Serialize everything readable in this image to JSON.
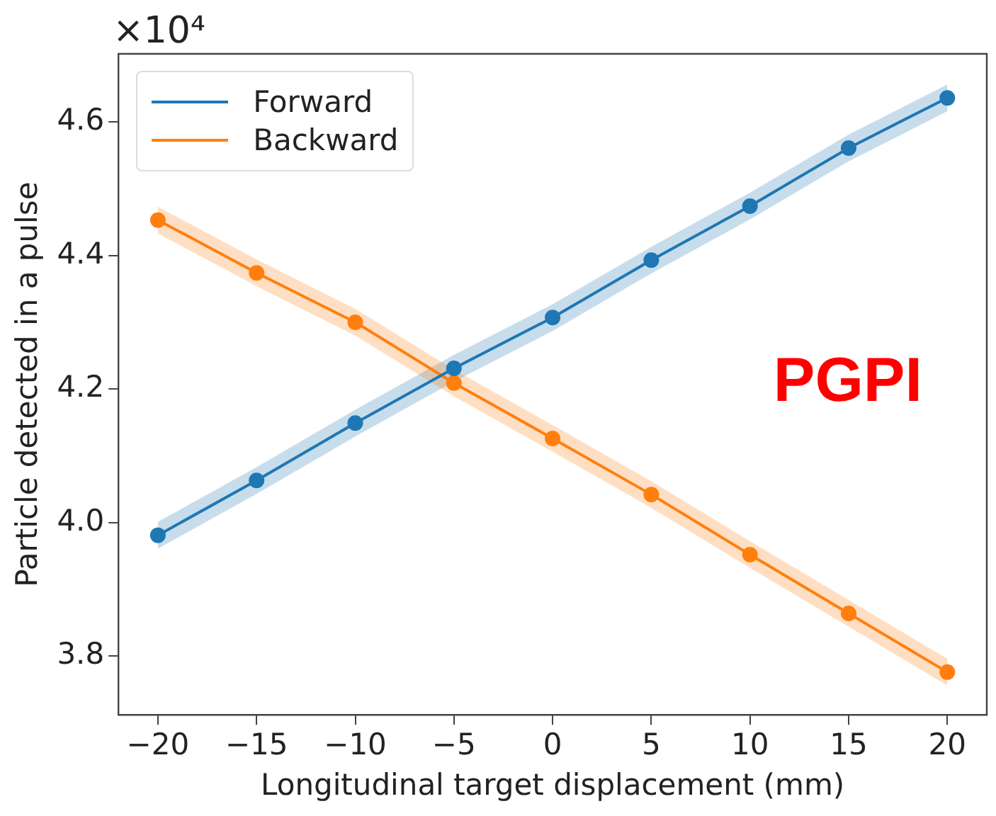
{
  "chart_data": {
    "type": "line",
    "xlabel": "Longitudinal target displacement (mm)",
    "ylabel": "Particle detected in a pulse",
    "annotations": [
      "×10⁴",
      "PGPI"
    ],
    "x": [
      -20,
      -15,
      -10,
      -5,
      0,
      5,
      10,
      15,
      20
    ],
    "series": [
      {
        "name": "Forward",
        "color": "#1f77b4",
        "values": [
          3.981,
          4.063,
          4.149,
          4.231,
          4.307,
          4.393,
          4.474,
          4.561,
          4.636
        ],
        "lower": [
          3.961,
          4.043,
          4.129,
          4.211,
          4.287,
          4.373,
          4.454,
          4.541,
          4.616
        ],
        "upper": [
          4.001,
          4.083,
          4.169,
          4.251,
          4.327,
          4.413,
          4.494,
          4.581,
          4.656
        ]
      },
      {
        "name": "Backward",
        "color": "#ff7f0e",
        "values": [
          4.453,
          4.374,
          4.3,
          4.209,
          4.126,
          4.042,
          3.952,
          3.864,
          3.776
        ],
        "lower": [
          4.433,
          4.354,
          4.28,
          4.189,
          4.106,
          4.022,
          3.932,
          3.844,
          3.756
        ],
        "upper": [
          4.473,
          4.394,
          4.32,
          4.229,
          4.146,
          4.062,
          3.972,
          3.884,
          3.796
        ]
      }
    ],
    "xlim": [
      -22,
      22
    ],
    "xticks": [
      -20,
      -15,
      -10,
      -5,
      0,
      5,
      10,
      15,
      20
    ],
    "ylim": [
      3.712,
      4.702
    ],
    "yticks": [
      3.8,
      {
        "value": 4,
        "label": "4.0"
      },
      4.2,
      4.4,
      4.6
    ],
    "grid": false,
    "legend": "top left",
    "marker": "circle",
    "line_style": "solid"
  }
}
